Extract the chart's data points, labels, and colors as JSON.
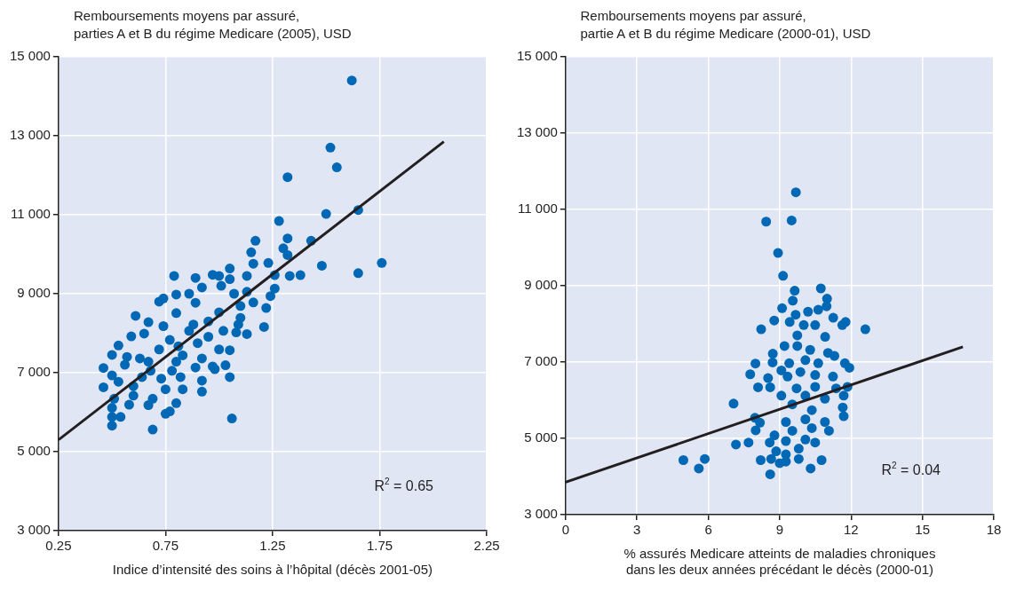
{
  "chart_data": [
    {
      "type": "scatter",
      "ylabel": "Remboursements moyens par assuré,\nparties A et B du régime Medicare (2005), USD",
      "xlabel": "Indice d’intensité des soins à l’hôpital (décès 2001-05)",
      "xlim": [
        0.25,
        2.25
      ],
      "xticks": [
        0.25,
        0.75,
        1.25,
        1.75,
        2.25
      ],
      "ylim": [
        3000,
        15000
      ],
      "yticks": [
        {
          "value": 3000,
          "label": "3 000"
        },
        {
          "value": 5000,
          "label": "5 000"
        },
        {
          "value": 7000,
          "label": "7 000"
        },
        {
          "value": 9000,
          "label": "9 000"
        },
        {
          "value": 11000,
          "label": "11 000"
        },
        {
          "value": 13000,
          "label": "13 000"
        },
        {
          "value": 15000,
          "label": "15 000"
        }
      ],
      "grid": true,
      "annotations": [
        "R$^{2}$ = 0.65"
      ],
      "series": [
        {
          "type": "scatter",
          "marker": "circle",
          "color": "#0068b4",
          "x": [
            1.62,
            1.52,
            1.55,
            1.32,
            1.65,
            1.5,
            1.28,
            1.17,
            1.32,
            1.43,
            1.3,
            1.32,
            1.15,
            1.16,
            1.23,
            1.48,
            1.76,
            1.65,
            1.33,
            1.38,
            1.26,
            1.13,
            1.05,
            1.05,
            0.97,
            1.0,
            0.89,
            0.79,
            0.92,
            1.01,
            1.07,
            1.13,
            1.26,
            1.24,
            0.8,
            0.86,
            0.74,
            0.72,
            1.16,
            1.22,
            1.1,
            0.89,
            0.8,
            1.0,
            0.61,
            0.67,
            1.1,
            1.21,
            1.13,
            1.08,
            0.88,
            0.74,
            0.95,
            0.65,
            0.59,
            0.53,
            0.5,
            1.05,
            1.0,
            0.57,
            0.63,
            0.72,
            0.81,
            0.9,
            0.46,
            0.56,
            0.67,
            0.8,
            0.89,
            0.97,
            1.03,
            0.98,
            1.05,
            0.92,
            0.5,
            0.46,
            0.53,
            0.64,
            0.73,
            0.82,
            0.83,
            0.92,
            0.75,
            0.69,
            0.6,
            0.51,
            0.67,
            0.8,
            0.58,
            0.5,
            0.5,
            0.54,
            0.5,
            0.77,
            0.75,
            0.69,
            1.06,
            0.95,
            0.86,
            0.77,
            0.83,
            0.92,
            1.02,
            1.09,
            0.68,
            0.6,
            0.78
          ],
          "values": [
            14400,
            12700,
            12200,
            11950,
            11120,
            11020,
            10840,
            10340,
            10400,
            10340,
            10150,
            9980,
            10050,
            9760,
            9780,
            9710,
            9780,
            9520,
            9450,
            9470,
            9470,
            9450,
            9640,
            9370,
            9480,
            9450,
            9400,
            9450,
            9160,
            9200,
            9000,
            9050,
            9130,
            8940,
            8980,
            9000,
            8880,
            8800,
            8780,
            8640,
            8690,
            8770,
            8510,
            8530,
            8440,
            8280,
            8390,
            8160,
            7980,
            8020,
            8220,
            8180,
            8300,
            7990,
            7920,
            7690,
            7450,
            7570,
            7590,
            7400,
            7360,
            7590,
            7670,
            7750,
            7120,
            7200,
            7280,
            7280,
            7130,
            7160,
            7190,
            7090,
            6890,
            6800,
            6930,
            6630,
            6770,
            6890,
            6850,
            6890,
            6580,
            6520,
            6580,
            6340,
            6420,
            6340,
            6180,
            6230,
            6190,
            6110,
            5880,
            5880,
            5660,
            6020,
            5960,
            5560,
            5840,
            7910,
            8060,
            7830,
            7440,
            7360,
            8060,
            8220,
            7050,
            6660,
            7050
          ]
        },
        {
          "type": "line",
          "marker": "none",
          "color": "#231f20",
          "x": [
            0.25,
            2.05
          ],
          "values": [
            5300,
            12850
          ]
        }
      ]
    },
    {
      "type": "scatter",
      "ylabel": "Remboursements moyens par assuré,\npartie A et B du régime Medicare (2000-01), USD",
      "xlabel": "% assurés Medicare atteints de maladies chroniques\ndans les deux années précédant le décès (2000-01)",
      "xlim": [
        0,
        18
      ],
      "xticks": [
        0,
        3,
        6,
        9,
        12,
        15,
        18
      ],
      "ylim": [
        3000,
        15000
      ],
      "yticks": [
        {
          "value": 3000,
          "label": "3 000"
        },
        {
          "value": 5000,
          "label": "5 000"
        },
        {
          "value": 7000,
          "label": "7 000"
        },
        {
          "value": 9000,
          "label": "9 000"
        },
        {
          "value": 11000,
          "label": "11 000"
        },
        {
          "value": 13000,
          "label": "13 000"
        },
        {
          "value": 15000,
          "label": "15 000"
        }
      ],
      "grid": true,
      "annotations": [
        "R$^{2}$ = 0.04"
      ],
      "series": [
        {
          "type": "scatter",
          "marker": "circle",
          "color": "#0068b4",
          "x": [
            9.68,
            8.43,
            9.5,
            8.93,
            9.14,
            10.73,
            9.63,
            9.55,
            10.99,
            10.97,
            9.1,
            10.19,
            10.62,
            9.67,
            8.77,
            11.25,
            11.77,
            11.63,
            12.6,
            8.22,
            10.49,
            10.01,
            9.42,
            9.74,
            10.91,
            9.74,
            9.2,
            8.71,
            10.28,
            11.03,
            11.3,
            7.98,
            8.7,
            9.4,
            10.08,
            10.62,
            11.74,
            11.93,
            7.76,
            8.51,
            9.07,
            9.33,
            9.87,
            11.24,
            10.49,
            8.09,
            8.6,
            9.71,
            10.49,
            11.37,
            11.85,
            9.07,
            10.08,
            10.9,
            11.69,
            7.06,
            7.96,
            8.17,
            9.53,
            10.35,
            11.65,
            11.69,
            9.26,
            10.08,
            10.9,
            7.99,
            11.07,
            9.53,
            10.35,
            8.78,
            8.58,
            9.26,
            10.08,
            10.49,
            7.16,
            7.69,
            9.8,
            8.85,
            9.26,
            4.95,
            5.85,
            5.6,
            8.2,
            8.64,
            9.26,
            9.8,
            10.76,
            10.3,
            8.6,
            9.0
          ],
          "values": [
            11450,
            10680,
            10710,
            9860,
            9260,
            8930,
            8870,
            8610,
            8660,
            8460,
            8410,
            8320,
            8370,
            8240,
            8090,
            8160,
            8050,
            7970,
            7860,
            7860,
            7970,
            7970,
            8050,
            7700,
            7660,
            7420,
            7420,
            7220,
            7320,
            7240,
            7160,
            6960,
            6990,
            6970,
            7050,
            6970,
            6970,
            6850,
            6680,
            6580,
            6780,
            6620,
            6740,
            6620,
            6660,
            6340,
            6340,
            6310,
            6350,
            6310,
            6350,
            6120,
            6120,
            6040,
            6120,
            5910,
            5540,
            5410,
            5890,
            5740,
            5810,
            5580,
            5430,
            5500,
            5430,
            5210,
            5200,
            5200,
            5270,
            5080,
            4890,
            4930,
            4970,
            4890,
            4840,
            4890,
            4730,
            4660,
            4580,
            4430,
            4460,
            4210,
            4430,
            4460,
            4390,
            4460,
            4430,
            4210,
            4060,
            4350
          ]
        },
        {
          "type": "line",
          "marker": "none",
          "color": "#231f20",
          "x": [
            0,
            16.7
          ],
          "values": [
            3850,
            7400
          ]
        }
      ]
    }
  ]
}
